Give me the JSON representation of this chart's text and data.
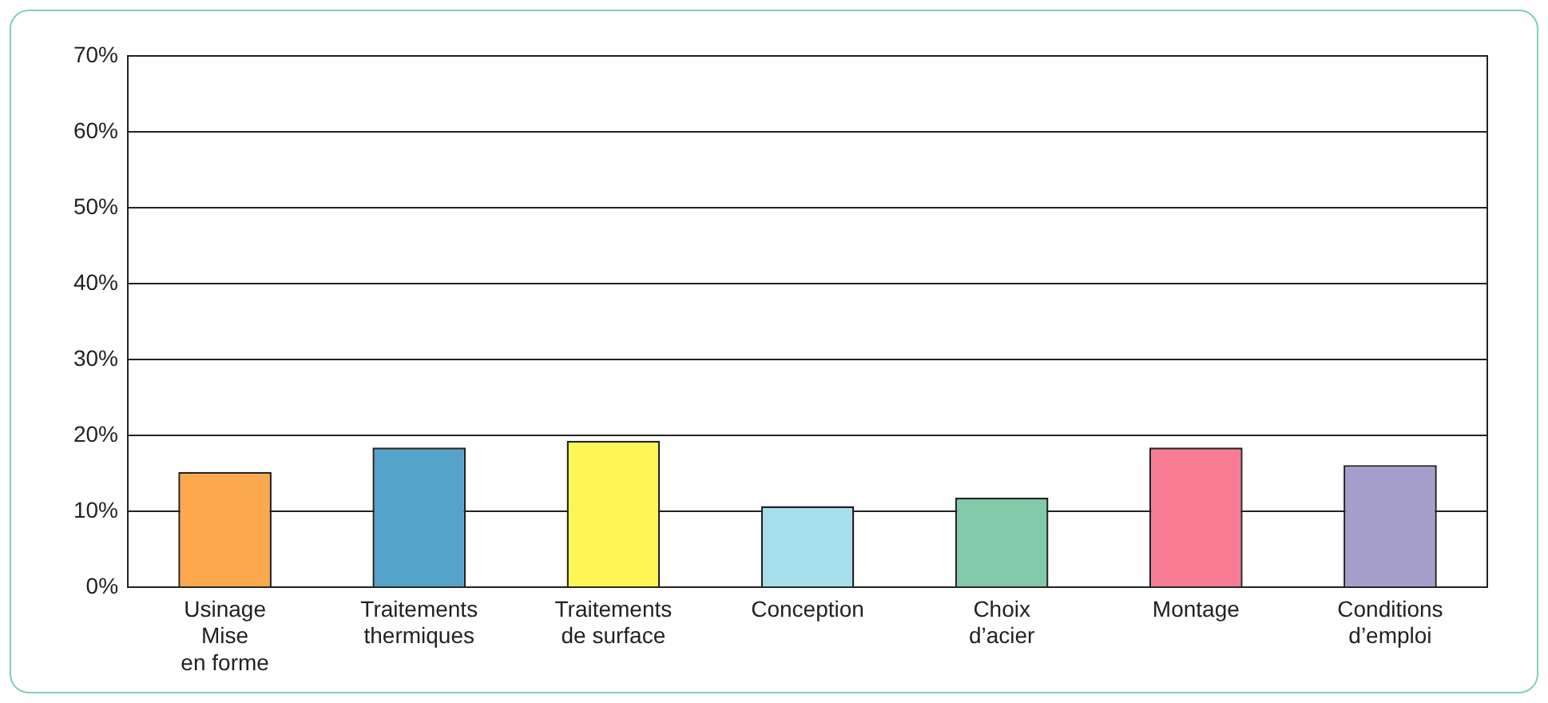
{
  "chart_data": {
    "type": "bar",
    "categories": [
      "Usinage\nMise\nen forme",
      "Traitements\nthermiques",
      "Traitements\nde surface",
      "Conception",
      "Choix\nd’acier",
      "Montage",
      "Conditions\nd’emploi"
    ],
    "values": [
      15.2,
      18.4,
      19.3,
      10.7,
      11.8,
      18.4,
      16.1
    ],
    "colors": [
      "#fca84c",
      "#55a3cb",
      "#fdf655",
      "#a7dfea",
      "#82c9a9",
      "#f77c93",
      "#a69fcb"
    ],
    "ylim": [
      0,
      70
    ],
    "yticks": [
      {
        "value": 0,
        "label": "0%"
      },
      {
        "value": 10,
        "label": "10%"
      },
      {
        "value": 20,
        "label": "20%"
      },
      {
        "value": 30,
        "label": "30%"
      },
      {
        "value": 40,
        "label": "40%"
      },
      {
        "value": 50,
        "label": "50%"
      },
      {
        "value": 60,
        "label": "60%"
      },
      {
        "value": 70,
        "label": "70%"
      }
    ],
    "grid": "y"
  }
}
